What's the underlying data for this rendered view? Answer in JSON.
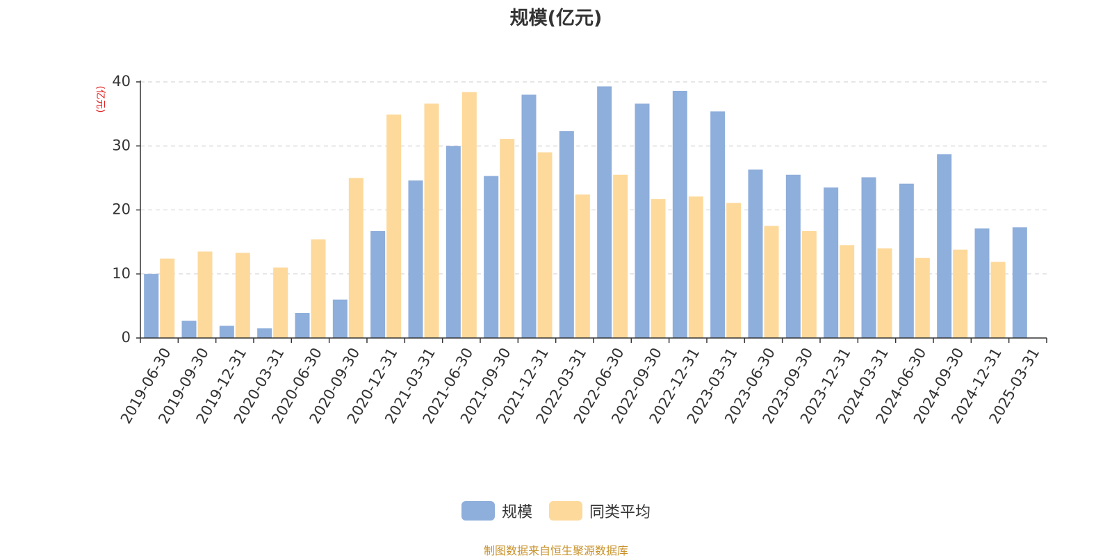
{
  "chart_data": {
    "type": "bar",
    "title": "规模(亿元)",
    "ylabel": "(亿元)",
    "xlabel": "",
    "ylim": [
      0,
      40
    ],
    "yticks": [
      0,
      10,
      20,
      30,
      40
    ],
    "grid": true,
    "legend_position": "bottom",
    "categories": [
      "2019-06-30",
      "2019-09-30",
      "2019-12-31",
      "2020-03-31",
      "2020-06-30",
      "2020-09-30",
      "2020-12-31",
      "2021-03-31",
      "2021-06-30",
      "2021-09-30",
      "2021-12-31",
      "2022-03-31",
      "2022-06-30",
      "2022-09-30",
      "2022-12-31",
      "2023-03-31",
      "2023-06-30",
      "2023-09-30",
      "2023-12-31",
      "2024-03-31",
      "2024-06-30",
      "2024-09-30",
      "2024-12-31",
      "2025-03-31"
    ],
    "series": [
      {
        "name": "规模",
        "color": "#8eaedb",
        "values": [
          10.0,
          2.7,
          1.9,
          1.5,
          3.9,
          6.0,
          16.7,
          24.6,
          30.0,
          25.3,
          38.0,
          32.3,
          39.3,
          36.6,
          38.6,
          35.4,
          26.3,
          25.5,
          23.5,
          25.1,
          24.1,
          28.7,
          17.1,
          17.3
        ]
      },
      {
        "name": "同类平均",
        "color": "#fdd99b",
        "values": [
          12.4,
          13.5,
          13.3,
          11.0,
          15.4,
          25.0,
          34.9,
          36.6,
          38.4,
          31.1,
          29.0,
          22.4,
          25.5,
          21.7,
          22.1,
          21.1,
          17.5,
          16.7,
          14.5,
          14.0,
          12.5,
          13.8,
          11.9,
          null
        ]
      }
    ]
  },
  "source_text": "制图数据来自恒生聚源数据库"
}
